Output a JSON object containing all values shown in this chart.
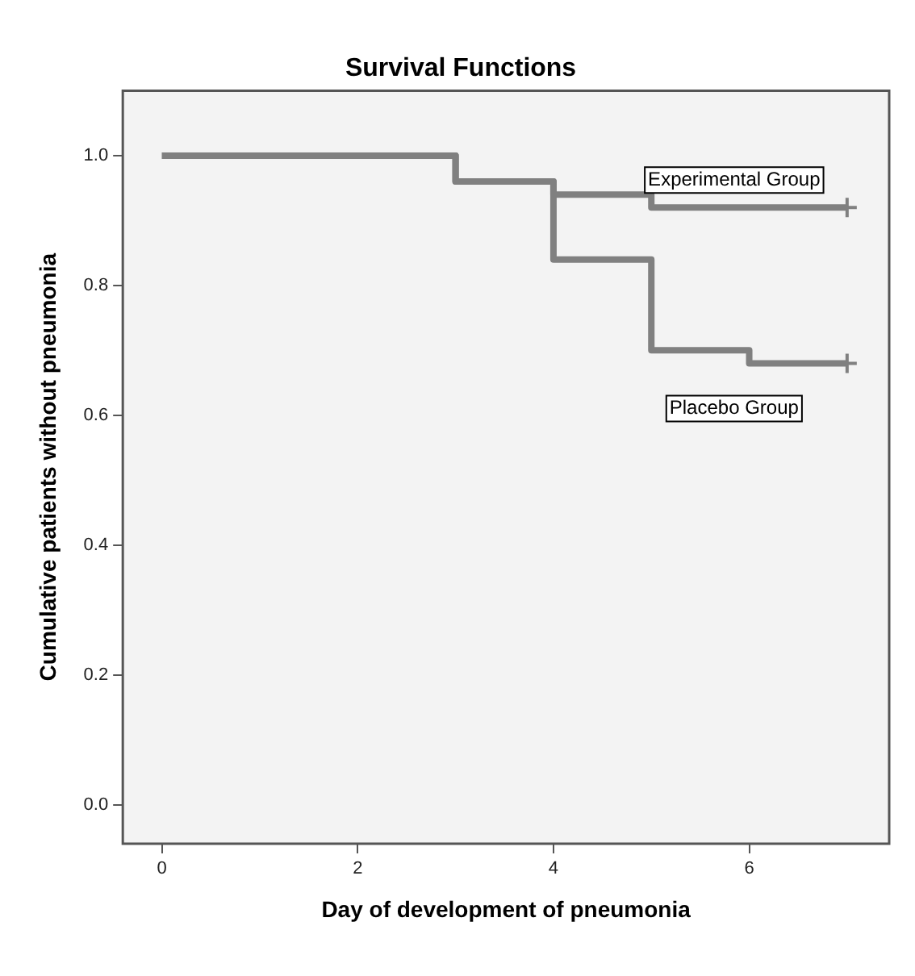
{
  "chart_data": {
    "type": "step",
    "title": "Survival Functions",
    "xlabel": "Day of development of pneumonia",
    "ylabel": "Cumulative patients without pneumonia",
    "xlim": [
      -0.4,
      7.43
    ],
    "xticks": [
      0,
      2,
      4,
      6
    ],
    "ylim": [
      -0.06,
      1.1
    ],
    "yticks": [
      {
        "value": 0,
        "label": "0.0"
      },
      {
        "value": 0.2,
        "label": "0.2"
      },
      {
        "value": 0.4,
        "label": "0.4"
      },
      {
        "value": 0.6,
        "label": "0.6"
      },
      {
        "value": 0.8,
        "label": "0.8"
      },
      {
        "value": 1,
        "label": "1.0"
      }
    ],
    "grid": false,
    "legend": false,
    "line_style": "solid",
    "series": [
      {
        "name": "Experimental Group",
        "color": "#808080",
        "x": [
          0,
          3,
          4,
          5,
          7
        ],
        "values": [
          1,
          0.96,
          0.94,
          0.92,
          0.92
        ]
      },
      {
        "name": "Placebo Group",
        "color": "#808080",
        "x": [
          0,
          3,
          4,
          5,
          6,
          7
        ],
        "values": [
          1,
          0.96,
          0.84,
          0.7,
          0.68,
          0.68
        ]
      },
      {
        "type": "scatter",
        "marker": "cross",
        "color": "#808080",
        "x": [
          7,
          7
        ],
        "values": [
          0.92,
          0.68
        ]
      }
    ]
  }
}
